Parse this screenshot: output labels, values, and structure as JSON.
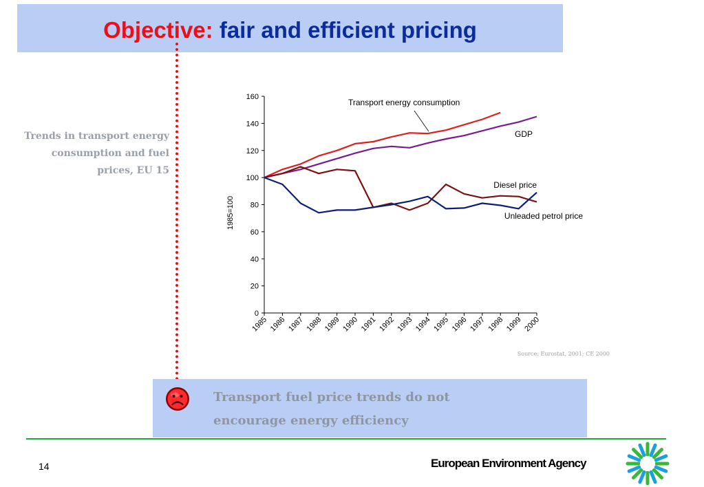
{
  "title": {
    "prefix": "Objective:",
    "rest": "fair and efficient pricing"
  },
  "side_caption": {
    "lines": [
      "Trends in transport energy",
      "consumption and fuel",
      "prices, EU 15"
    ]
  },
  "source": "Source: Eurostat, 2001; CE 2000",
  "conclusion": {
    "lines": [
      "Transport fuel price trends do not",
      "encourage energy efficiency"
    ]
  },
  "footer": {
    "page_number": "14",
    "agency": "European Environment Agency"
  },
  "icons": {
    "conclusion": "sad-face-icon",
    "logo": "eea-logo-icon"
  },
  "colors": {
    "title_red": "#e8111b",
    "title_blue": "#0c2c9a",
    "box_fill": "#b9cdf5",
    "rule_green": "#1fa83a"
  },
  "chart_data": {
    "type": "line",
    "x": [
      "1985",
      "1986",
      "1987",
      "1988",
      "1989",
      "1990",
      "1991",
      "1992",
      "1993",
      "1994",
      "1995",
      "1996",
      "1997",
      "1998",
      "1999",
      "2000"
    ],
    "ylabel": "1985=100",
    "ylim": [
      0,
      160
    ],
    "yticks": [
      0,
      20,
      40,
      60,
      80,
      100,
      120,
      140,
      160
    ],
    "grid": false,
    "series": [
      {
        "name": "Transport energy consumption",
        "color": "#e01e1e",
        "values": [
          100,
          106,
          110,
          116,
          120,
          125,
          126.5,
          130,
          133,
          132.5,
          135,
          139,
          143,
          148,
          null,
          null
        ]
      },
      {
        "name": "GDP",
        "color": "#7b1a8c",
        "values": [
          100,
          103,
          106,
          110,
          114,
          118,
          121.5,
          123,
          122,
          125.5,
          128.5,
          131,
          134.5,
          138,
          141,
          145
        ]
      },
      {
        "name": "Diesel price",
        "color": "#7a1010",
        "values": [
          100,
          103,
          108,
          103,
          106,
          105,
          78,
          81,
          76,
          81,
          95,
          88,
          85,
          86.5,
          86,
          82
        ]
      },
      {
        "name": "Unleaded petrol price",
        "color": "#0b1e78",
        "values": [
          100,
          95,
          81,
          74,
          76,
          76,
          78,
          80,
          82.5,
          86,
          77,
          77.5,
          81,
          79.5,
          77,
          89
        ]
      }
    ]
  }
}
